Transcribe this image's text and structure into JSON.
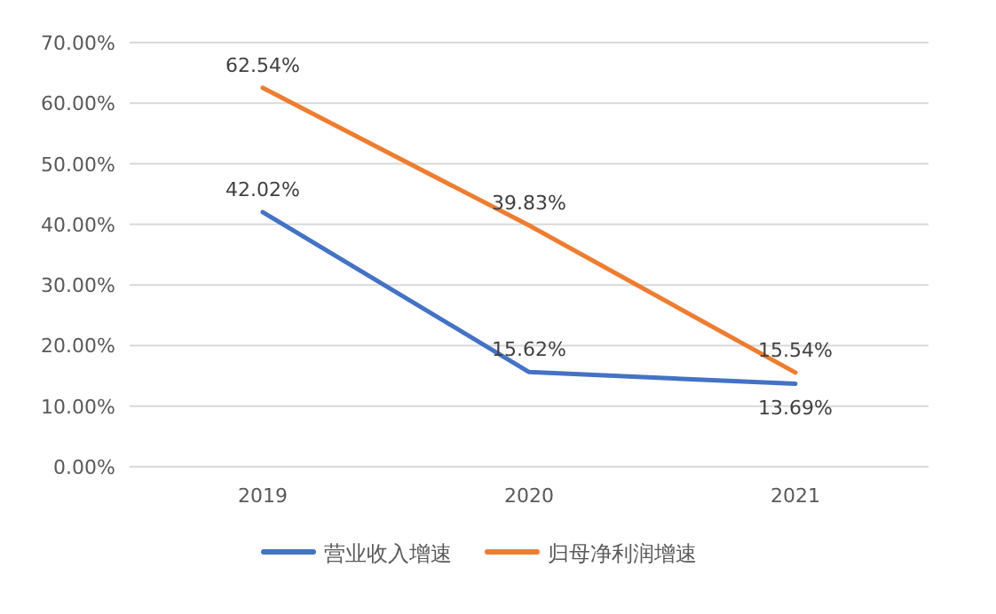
{
  "chart_data": {
    "type": "line",
    "categories": [
      "2019",
      "2020",
      "2021"
    ],
    "series": [
      {
        "name": "营业收入增速",
        "color": "#4472c4",
        "values": [
          42.02,
          15.62,
          13.69
        ],
        "value_labels": [
          "42.02%",
          "15.62%",
          "13.69%"
        ]
      },
      {
        "name": "归母净利润增速",
        "color": "#ed7d31",
        "values": [
          62.54,
          39.83,
          15.54
        ],
        "value_labels": [
          "62.54%",
          "39.83%",
          "15.54%"
        ]
      }
    ],
    "ylim": [
      0,
      70
    ],
    "yticks": [
      {
        "value": 0,
        "label": "0.00%"
      },
      {
        "value": 10,
        "label": "10.00%"
      },
      {
        "value": 20,
        "label": "20.00%"
      },
      {
        "value": 30,
        "label": "30.00%"
      },
      {
        "value": 40,
        "label": "40.00%"
      },
      {
        "value": 50,
        "label": "50.00%"
      },
      {
        "value": 60,
        "label": "60.00%"
      },
      {
        "value": 70,
        "label": "70.00%"
      }
    ],
    "grid": "y",
    "legend": "bottom",
    "marker": "none",
    "line_style": "solid"
  }
}
